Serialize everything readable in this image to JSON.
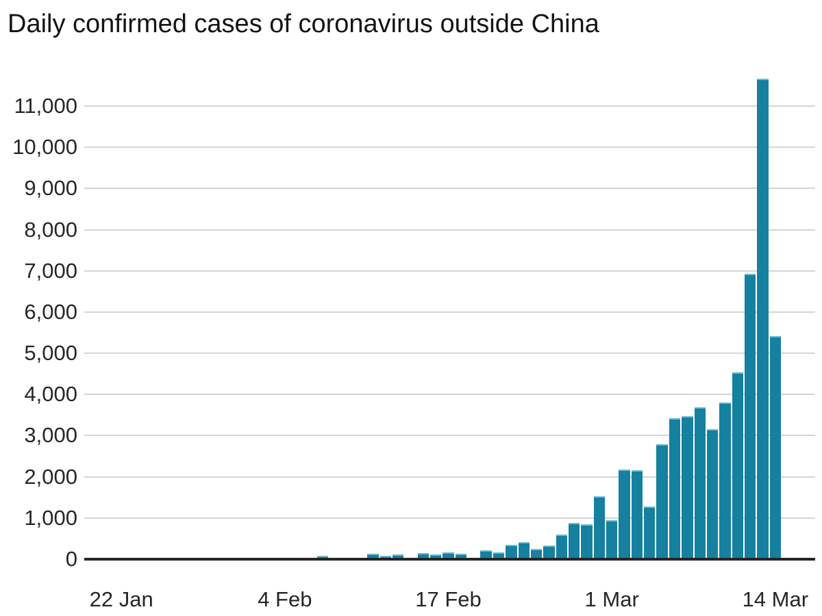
{
  "title": "Daily confirmed cases of coronavirus outside China",
  "colors": {
    "bar": "#1580a0",
    "bar_cap": "#6fbcd0",
    "gridline": "#d5d5d5",
    "axis": "#262626",
    "text": "#262626",
    "background": "#ffffff"
  },
  "chart_data": {
    "type": "bar",
    "title": "Daily confirmed cases of coronavirus outside China",
    "xlabel": "",
    "ylabel": "",
    "grid": true,
    "legend": "none",
    "ylim": [
      0,
      11000
    ],
    "y_ticks": [
      "0",
      "1,000",
      "2,000",
      "3,000",
      "4,000",
      "5,000",
      "6,000",
      "7,000",
      "8,000",
      "9,000",
      "10,000",
      "11,000"
    ],
    "x_tick_labels": [
      "22 Jan",
      "4 Feb",
      "17 Feb",
      "1 Mar",
      "14 Mar"
    ],
    "x_tick_indices": [
      0,
      13,
      26,
      39,
      52
    ],
    "x": [
      "22 Jan",
      "23 Jan",
      "24 Jan",
      "25 Jan",
      "26 Jan",
      "27 Jan",
      "28 Jan",
      "29 Jan",
      "30 Jan",
      "31 Jan",
      "1 Feb",
      "2 Feb",
      "3 Feb",
      "4 Feb",
      "5 Feb",
      "6 Feb",
      "7 Feb",
      "8 Feb",
      "9 Feb",
      "10 Feb",
      "11 Feb",
      "12 Feb",
      "13 Feb",
      "14 Feb",
      "15 Feb",
      "16 Feb",
      "17 Feb",
      "18 Feb",
      "19 Feb",
      "20 Feb",
      "21 Feb",
      "22 Feb",
      "23 Feb",
      "24 Feb",
      "25 Feb",
      "26 Feb",
      "27 Feb",
      "28 Feb",
      "29 Feb",
      "1 Mar",
      "2 Mar",
      "3 Mar",
      "4 Mar",
      "5 Mar",
      "6 Mar",
      "7 Mar",
      "8 Mar",
      "9 Mar",
      "10 Mar",
      "11 Mar",
      "12 Mar",
      "13 Mar",
      "14 Mar"
    ],
    "values": [
      4,
      6,
      8,
      12,
      14,
      10,
      12,
      10,
      16,
      25,
      40,
      25,
      15,
      12,
      20,
      20,
      50,
      25,
      25,
      20,
      105,
      50,
      80,
      30,
      115,
      90,
      125,
      105,
      20,
      190,
      130,
      310,
      380,
      215,
      300,
      570,
      840,
      810,
      1490,
      920,
      2150,
      2120,
      1240,
      2760,
      3390,
      3440,
      3650,
      3130,
      3770,
      4500,
      6900,
      11640,
      5390
    ]
  }
}
